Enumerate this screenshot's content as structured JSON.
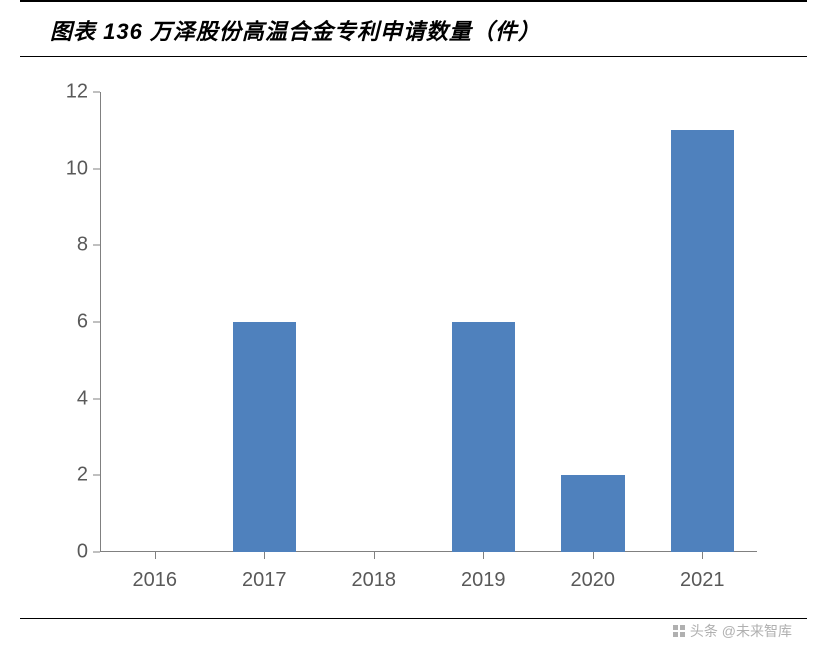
{
  "title": "图表 136 万泽股份高温合金专利申请数量（件）",
  "chart": {
    "type": "bar",
    "categories": [
      "2016",
      "2017",
      "2018",
      "2019",
      "2020",
      "2021"
    ],
    "values": [
      0,
      6,
      0,
      6,
      2,
      11
    ],
    "bar_color": "#4f81bd",
    "ylim": [
      0,
      12
    ],
    "ytick_step": 2,
    "yticks": [
      0,
      2,
      4,
      6,
      8,
      10,
      12
    ],
    "axis_color": "#808080",
    "tick_label_color": "#595959",
    "tick_label_fontsize": 20,
    "background_color": "#ffffff",
    "bar_width_ratio": 0.58
  },
  "watermark": {
    "text": "头条 @未来智库",
    "color": "#b0b0b0"
  },
  "rules": {
    "top_border_color": "#000000",
    "bottom_border_color": "#000000"
  }
}
